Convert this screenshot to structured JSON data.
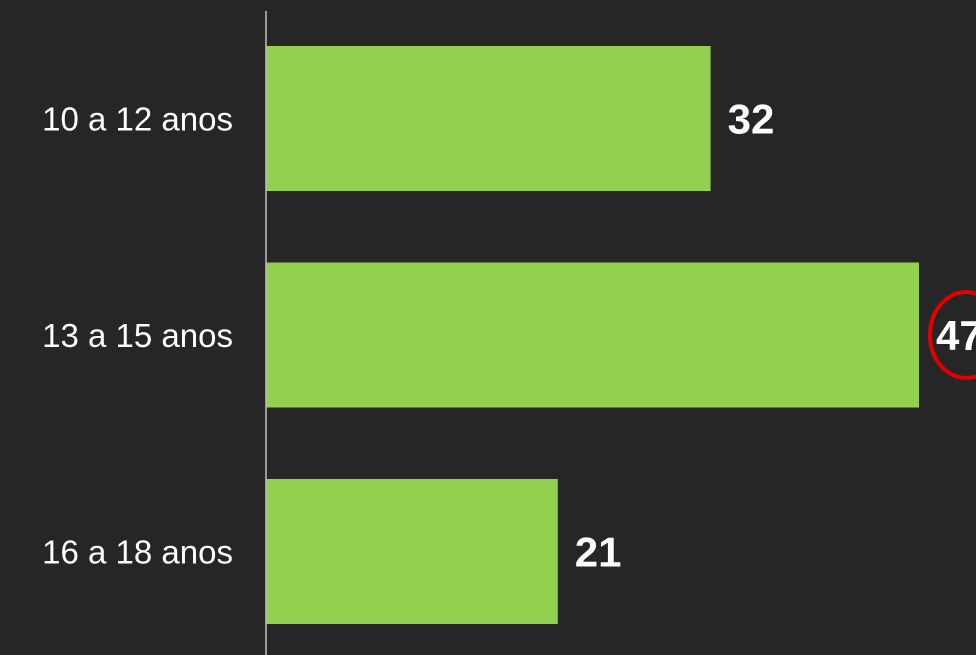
{
  "chart_data": {
    "type": "bar",
    "orientation": "horizontal",
    "categories": [
      "10 a 12 anos",
      "13 a 15 anos",
      "16 a 18 anos"
    ],
    "values": [
      32,
      47,
      21
    ],
    "data_labels": [
      "32",
      "47",
      "21"
    ],
    "title": "",
    "xlabel": "",
    "ylabel": "",
    "xlim": [
      0,
      47
    ],
    "grid": false,
    "legend": "none",
    "highlighted_value_index": 1
  },
  "colors": {
    "background": "#262626",
    "bar": "#92D050",
    "axis": "#BFBFBF",
    "text": "#FFFFFF",
    "highlight_circle": "#E00000"
  }
}
